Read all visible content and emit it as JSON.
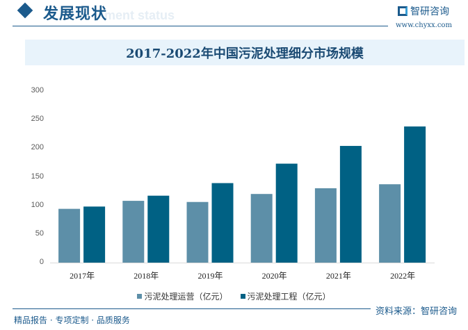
{
  "header": {
    "section_title": "发展现状",
    "ghost_text": "ment status",
    "brand": "智研咨询",
    "site": "www.chyxx.com"
  },
  "footer": {
    "source": "资料来源：智研咨询",
    "slogan": "精品报告 · 专项定制 · 品质服务"
  },
  "colors": {
    "accent": "#1b5a8c",
    "series1": "#5d8fa8",
    "series2": "#006184"
  },
  "chart_data": {
    "type": "bar",
    "title": "2017-2022年中国污泥处理细分市场规模",
    "categories": [
      "2017年",
      "2018年",
      "2019年",
      "2020年",
      "2021年",
      "2022年"
    ],
    "series": [
      {
        "name": "污泥处理运营（亿元）",
        "values": [
          94,
          108,
          106,
          120,
          130,
          137
        ]
      },
      {
        "name": "污泥处理工程（亿元）",
        "values": [
          98,
          117,
          139,
          173,
          204,
          238
        ]
      }
    ],
    "ylim": [
      0,
      300
    ],
    "yticks": [
      "0",
      "50",
      "100",
      "150",
      "200",
      "250",
      "300"
    ],
    "grid": false,
    "legend": "bottom"
  }
}
